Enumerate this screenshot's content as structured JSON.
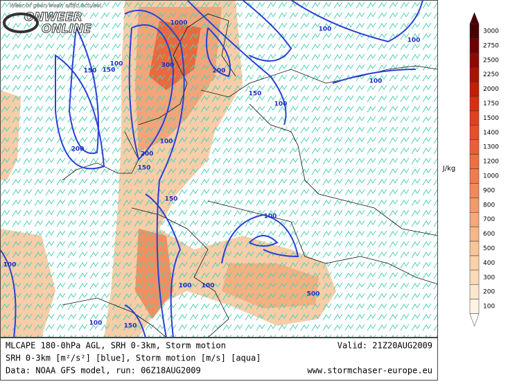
{
  "logo": {
    "tagline": "Weer of geen weer, altijd actueel",
    "name_top": "ONWEER",
    "name_bottom": "ONLINE"
  },
  "legend": {
    "unit": "J/kg",
    "levels": [
      {
        "label": "3000",
        "color": "#4a0000"
      },
      {
        "label": "2750",
        "color": "#6b0000"
      },
      {
        "label": "2500",
        "color": "#8a0a00"
      },
      {
        "label": "2250",
        "color": "#a51500"
      },
      {
        "label": "2000",
        "color": "#c02000"
      },
      {
        "label": "1750",
        "color": "#d63010"
      },
      {
        "label": "1500",
        "color": "#e04020"
      },
      {
        "label": "1400",
        "color": "#e45028"
      },
      {
        "label": "1300",
        "color": "#e86035"
      },
      {
        "label": "1200",
        "color": "#ec7040"
      },
      {
        "label": "1000",
        "color": "#ef7d4c"
      },
      {
        "label": "900",
        "color": "#f18a58"
      },
      {
        "label": "800",
        "color": "#f39a68"
      },
      {
        "label": "700",
        "color": "#f5a878"
      },
      {
        "label": "600",
        "color": "#f7b688"
      },
      {
        "label": "500",
        "color": "#f8c498"
      },
      {
        "label": "400",
        "color": "#fad0a8"
      },
      {
        "label": "300",
        "color": "#fbdab8"
      },
      {
        "label": "200",
        "color": "#fde6cc"
      },
      {
        "label": "100",
        "color": "#fef2e4"
      }
    ]
  },
  "contour_labels": [
    "1000",
    "300",
    "200",
    "200",
    "150",
    "100",
    "100",
    "150",
    "100",
    "200",
    "100",
    "150",
    "150",
    "100",
    "150",
    "100",
    "100",
    "100",
    "500",
    "100",
    "100",
    "150",
    "100"
  ],
  "footer": {
    "line1": "MLCAPE 180-0hPa AGL, SRH 0-3km, Storm motion",
    "valid": "Valid: 21Z20AUG2009",
    "line2": "SRH 0-3km [m²/s²] [blue], Storm motion [m/s] [aqua]",
    "line3": "Data: NOAA GFS model, run: 06Z18AUG2009",
    "site": "www.stormchaser-europe.eu"
  }
}
